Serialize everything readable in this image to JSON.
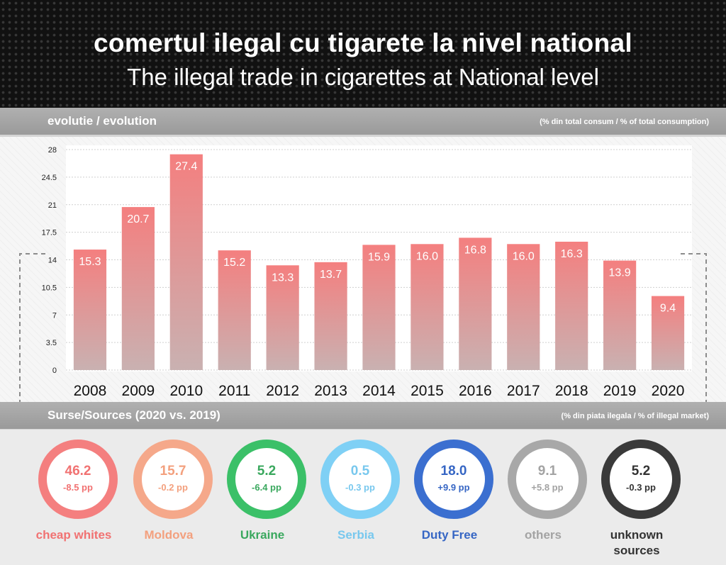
{
  "header": {
    "title": "comertul ilegal cu tigarete la nivel national",
    "subtitle": "The illegal trade in cigarettes at National level"
  },
  "evolution_section": {
    "label": "evolutie / evolution",
    "unit_note": "(% din total consum / % of total consumption)"
  },
  "sources_section": {
    "label": "Surse/Sources (2020 vs. 2019)",
    "unit_note": "(% din piata ilegala / % of illegal market)"
  },
  "colors": {
    "bar_top": "#f47f7f",
    "bar_bottom": "#c9b1b1",
    "section_bar": "#a6a6a6"
  },
  "chart_data": {
    "type": "bar",
    "categories": [
      "2008",
      "2009",
      "2010",
      "2011",
      "2012",
      "2013",
      "2014",
      "2015",
      "2016",
      "2017",
      "2018",
      "2019",
      "2020"
    ],
    "values": [
      15.3,
      20.7,
      27.4,
      15.2,
      13.3,
      13.7,
      15.9,
      16.0,
      16.8,
      16.0,
      16.3,
      13.9,
      9.4
    ],
    "value_labels": [
      "15.3",
      "20.7",
      "27.4",
      "15.2",
      "13.3",
      "13.7",
      "15.9",
      "16.0",
      "16.8",
      "16.0",
      "16.3",
      "13.9",
      "9.4"
    ],
    "yticks": [
      0,
      3.5,
      7,
      10.5,
      14,
      17.5,
      21,
      24.5,
      28
    ],
    "ytick_labels": [
      "0",
      "3.5",
      "7",
      "10.5",
      "14",
      "17.5",
      "21",
      "24.5",
      "28"
    ],
    "ylim": [
      0,
      28
    ],
    "grid": true
  },
  "sources": [
    {
      "name": "cheap whites",
      "value": "46.2",
      "change": "-8.5 pp",
      "color": "#f47f7f",
      "text_color": "#f17272"
    },
    {
      "name": "Moldova",
      "value": "15.7",
      "change": "-0.2 pp",
      "color": "#f5a88a",
      "text_color": "#f3a07e"
    },
    {
      "name": "Ukraine",
      "value": "5.2",
      "change": "-6.4 pp",
      "color": "#3bc068",
      "text_color": "#3aa85e"
    },
    {
      "name": "Serbia",
      "value": "0.5",
      "change": "-0.3 pp",
      "color": "#7fd0f5",
      "text_color": "#78c8ee"
    },
    {
      "name": "Duty Free",
      "value": "18.0",
      "change": "+9.9 pp",
      "color": "#3b6fd0",
      "text_color": "#3666c4"
    },
    {
      "name": "others",
      "value": "9.1",
      "change": "+5.8 pp",
      "color": "#a8a8a8",
      "text_color": "#a3a3a3"
    },
    {
      "name": "unknown sources",
      "value": "5.2",
      "change": "-0.3 pp",
      "color": "#3a3a3a",
      "text_color": "#333333"
    }
  ]
}
